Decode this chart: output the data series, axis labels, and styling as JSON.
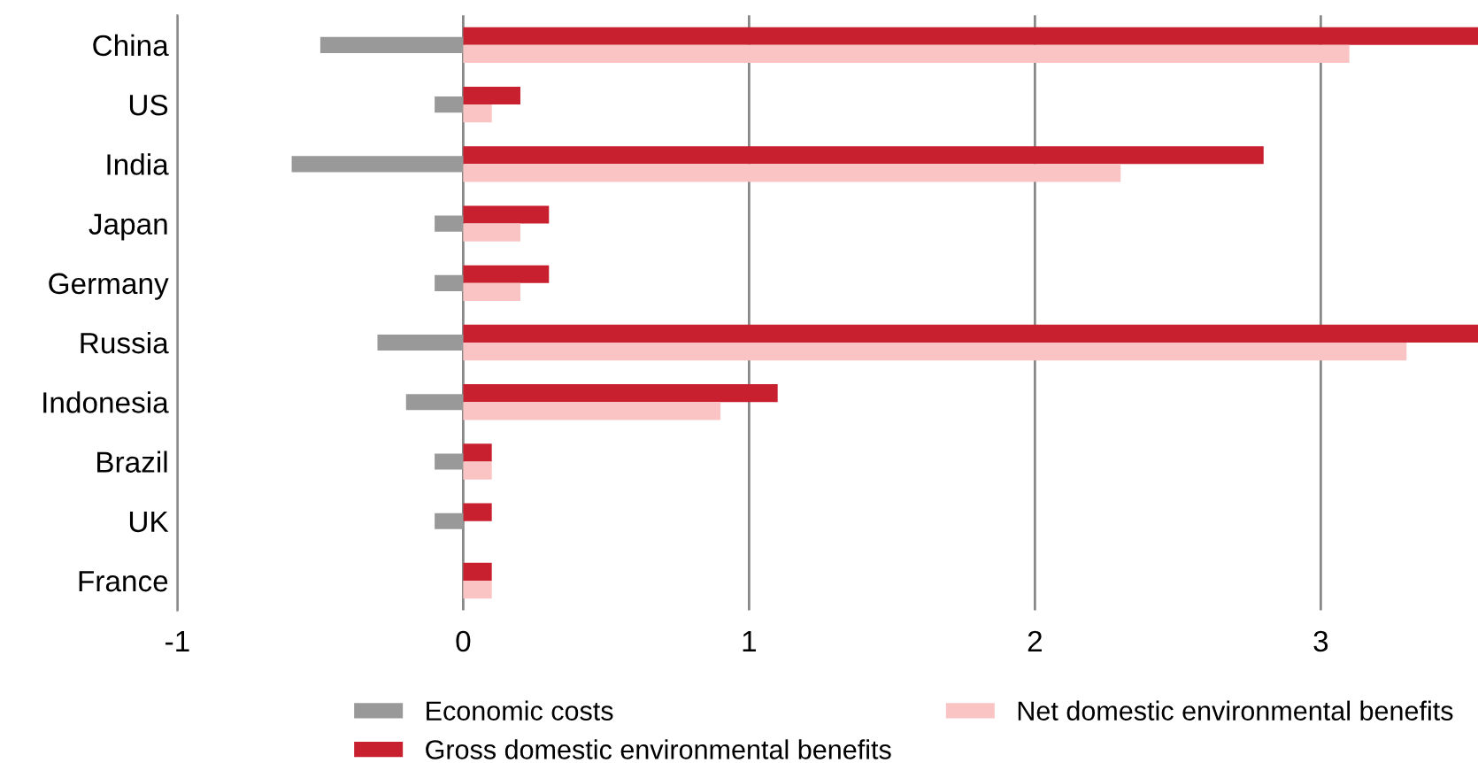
{
  "chart_data": {
    "type": "bar",
    "orientation": "horizontal",
    "categories": [
      "China",
      "US",
      "India",
      "Japan",
      "Germany",
      "Russia",
      "Indonesia",
      "Brazil",
      "UK",
      "France"
    ],
    "series": [
      {
        "name": "Gross domestic environmental benefits",
        "color": "#c8202f",
        "values": [
          3.55,
          0.2,
          2.8,
          0.3,
          0.3,
          3.55,
          1.1,
          0.1,
          0.1,
          0.1
        ]
      },
      {
        "name": "Economic costs",
        "color": "#999999",
        "values": [
          -0.5,
          -0.1,
          -0.6,
          -0.1,
          -0.1,
          -0.3,
          -0.2,
          -0.1,
          -0.1,
          null
        ]
      },
      {
        "name": "Net domestic environmental benefits",
        "color": "#fbc4c4",
        "values": [
          3.1,
          0.1,
          2.3,
          0.2,
          0.2,
          3.3,
          0.9,
          0.1,
          null,
          0.1
        ]
      }
    ],
    "xlim": [
      -1,
      3.55
    ],
    "xticks": [
      -1,
      0,
      1,
      2,
      3
    ],
    "grid": "x",
    "legend": "bottom right"
  }
}
